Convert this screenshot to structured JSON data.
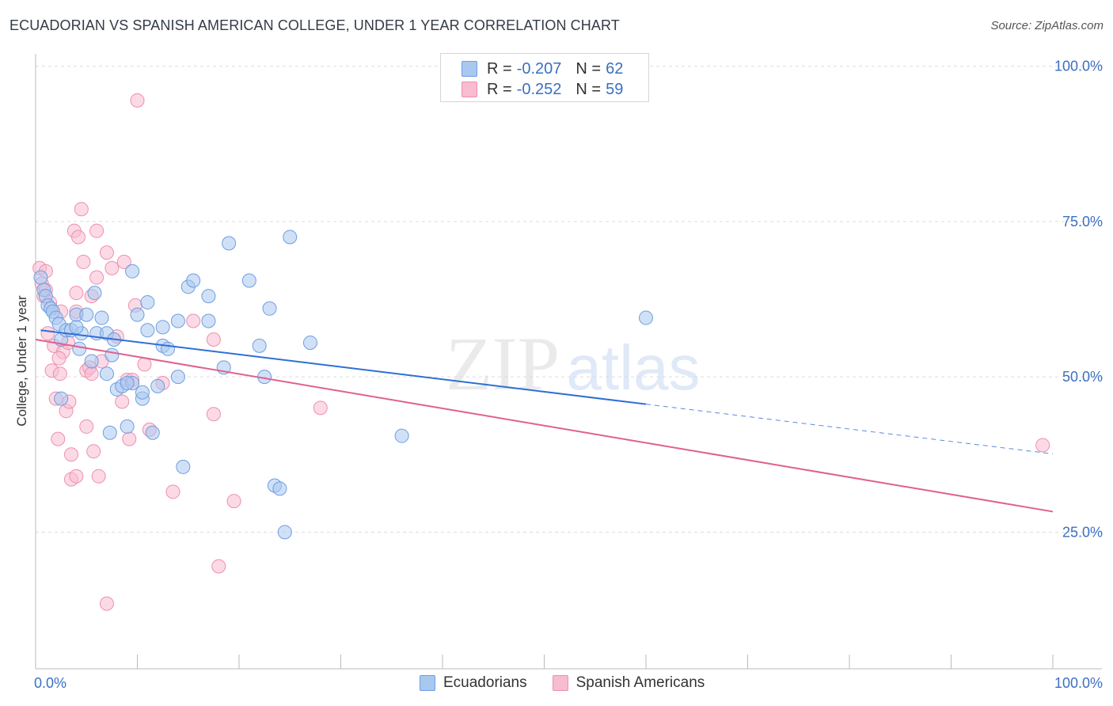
{
  "header": {
    "title": "ECUADORIAN VS SPANISH AMERICAN COLLEGE, UNDER 1 YEAR CORRELATION CHART",
    "source": "Source: ZipAtlas.com"
  },
  "legend": {
    "rows": [
      {
        "r_label": "R =",
        "r_value": "-0.207",
        "n_label": "N =",
        "n_value": "62"
      },
      {
        "r_label": "R =",
        "r_value": "-0.252",
        "n_label": "N =",
        "n_value": "59"
      }
    ]
  },
  "colors": {
    "blue_fill": "#a9c8f0",
    "blue_stroke": "#6e9ee0",
    "blue_line": "#2f6fd6",
    "pink_fill": "#f7bcd0",
    "pink_stroke": "#ee8fb0",
    "pink_line": "#e0608f",
    "tick_label": "#3b6fc4",
    "grid": "#dcdcdc"
  },
  "watermark": {
    "zip": "ZIP",
    "atlas": "atlas"
  },
  "chart_data": {
    "type": "scatter",
    "title": "ECUADORIAN VS SPANISH AMERICAN COLLEGE, UNDER 1 YEAR CORRELATION CHART",
    "xlabel": "",
    "ylabel": "College, Under 1 year",
    "xlim": [
      0,
      100
    ],
    "ylim": [
      3,
      102
    ],
    "x_tick_labels": [
      {
        "value": 0,
        "label": "0.0%"
      },
      {
        "value": 100,
        "label": "100.0%"
      }
    ],
    "y_tick_labels": [
      {
        "value": 100,
        "label": "100.0%"
      },
      {
        "value": 75,
        "label": "75.0%"
      },
      {
        "value": 50,
        "label": "50.0%"
      },
      {
        "value": 25,
        "label": "25.0%"
      }
    ],
    "gridlines_y": [
      100,
      75,
      50,
      25
    ],
    "x_minor_ticks": [
      10,
      20,
      30,
      40,
      50,
      60,
      70,
      80,
      90,
      100
    ],
    "legend_position": "top-center",
    "series": [
      {
        "name": "Ecuadorians",
        "color": "blue",
        "R": -0.207,
        "N": 62,
        "trend": {
          "x0": 0.5,
          "y0": 57.5,
          "x1": 60,
          "y1": 45.6,
          "dash_x1": 100,
          "dash_y1": 37.6
        },
        "points": [
          [
            0.5,
            66
          ],
          [
            0.8,
            64
          ],
          [
            1,
            63
          ],
          [
            1.2,
            61.5
          ],
          [
            1.5,
            61
          ],
          [
            1.7,
            60.5
          ],
          [
            2,
            59.5
          ],
          [
            2.3,
            58.5
          ],
          [
            2.5,
            56
          ],
          [
            3,
            57.5
          ],
          [
            3.5,
            57.5
          ],
          [
            4,
            60
          ],
          [
            4.3,
            54.5
          ],
          [
            4.5,
            57
          ],
          [
            5,
            60
          ],
          [
            5.5,
            52.5
          ],
          [
            5.8,
            63.5
          ],
          [
            6,
            57
          ],
          [
            6.5,
            59.5
          ],
          [
            7,
            50.5
          ],
          [
            7,
            57
          ],
          [
            7.3,
            41
          ],
          [
            7.5,
            53.5
          ],
          [
            7.7,
            56
          ],
          [
            8,
            48
          ],
          [
            8.5,
            48.5
          ],
          [
            9,
            42
          ],
          [
            9.5,
            49
          ],
          [
            9.5,
            67
          ],
          [
            10,
            60
          ],
          [
            10.5,
            46.5
          ],
          [
            10.5,
            47.5
          ],
          [
            11,
            62
          ],
          [
            11,
            57.5
          ],
          [
            11.5,
            41
          ],
          [
            12,
            48.5
          ],
          [
            12.5,
            55
          ],
          [
            12.5,
            58
          ],
          [
            13,
            54.5
          ],
          [
            14,
            59
          ],
          [
            14,
            50
          ],
          [
            14.5,
            35.5
          ],
          [
            15,
            64.5
          ],
          [
            15.5,
            65.5
          ],
          [
            17,
            63
          ],
          [
            17,
            59
          ],
          [
            18.5,
            51.5
          ],
          [
            19,
            71.5
          ],
          [
            21,
            65.5
          ],
          [
            22,
            55
          ],
          [
            22.5,
            50
          ],
          [
            23,
            61
          ],
          [
            23.5,
            32.5
          ],
          [
            24,
            32
          ],
          [
            24.5,
            25
          ],
          [
            25,
            72.5
          ],
          [
            27,
            55.5
          ],
          [
            36,
            40.5
          ],
          [
            60,
            59.5
          ],
          [
            2.5,
            46.5
          ],
          [
            4,
            58
          ],
          [
            9,
            49
          ]
        ]
      },
      {
        "name": "Spanish Americans",
        "color": "pink",
        "R": -0.252,
        "N": 59,
        "trend": {
          "x0": 0,
          "y0": 56,
          "x1": 100,
          "y1": 28.3
        },
        "points": [
          [
            0.4,
            67.5
          ],
          [
            0.6,
            65
          ],
          [
            0.8,
            63
          ],
          [
            1,
            67
          ],
          [
            1.2,
            57
          ],
          [
            1.4,
            62
          ],
          [
            1.6,
            51
          ],
          [
            1.8,
            55
          ],
          [
            2,
            46.5
          ],
          [
            2.2,
            40
          ],
          [
            2.4,
            50.5
          ],
          [
            2.5,
            60.5
          ],
          [
            2.7,
            54
          ],
          [
            3,
            44.5
          ],
          [
            3.2,
            55.5
          ],
          [
            3.3,
            46
          ],
          [
            3.5,
            33.5
          ],
          [
            3.5,
            37.5
          ],
          [
            3.8,
            73.5
          ],
          [
            4,
            34
          ],
          [
            4,
            60.5
          ],
          [
            4.2,
            72.5
          ],
          [
            4.5,
            77
          ],
          [
            4.7,
            68.5
          ],
          [
            5,
            42
          ],
          [
            5,
            51
          ],
          [
            5.3,
            51.5
          ],
          [
            5.5,
            63
          ],
          [
            5.5,
            50.5
          ],
          [
            5.7,
            38
          ],
          [
            6,
            66
          ],
          [
            6,
            73.5
          ],
          [
            6.2,
            34
          ],
          [
            6.5,
            52.5
          ],
          [
            7,
            70
          ],
          [
            7.5,
            67.5
          ],
          [
            8,
            56.5
          ],
          [
            8.5,
            46
          ],
          [
            8.7,
            68.5
          ],
          [
            9,
            49.5
          ],
          [
            9.2,
            40
          ],
          [
            9.5,
            49.5
          ],
          [
            9.8,
            61.5
          ],
          [
            10,
            94.5
          ],
          [
            10.7,
            52
          ],
          [
            11.2,
            41.5
          ],
          [
            12.5,
            49
          ],
          [
            13.5,
            31.5
          ],
          [
            15.5,
            59
          ],
          [
            17.5,
            44
          ],
          [
            17.5,
            56
          ],
          [
            18,
            19.5
          ],
          [
            19.5,
            30
          ],
          [
            28,
            45
          ],
          [
            7,
            13.5
          ],
          [
            99,
            39
          ],
          [
            4,
            63.5
          ],
          [
            2.3,
            53
          ],
          [
            1,
            64
          ]
        ]
      }
    ]
  },
  "bottom_legend": {
    "items": [
      {
        "label": "Ecuadorians"
      },
      {
        "label": "Spanish Americans"
      }
    ]
  }
}
